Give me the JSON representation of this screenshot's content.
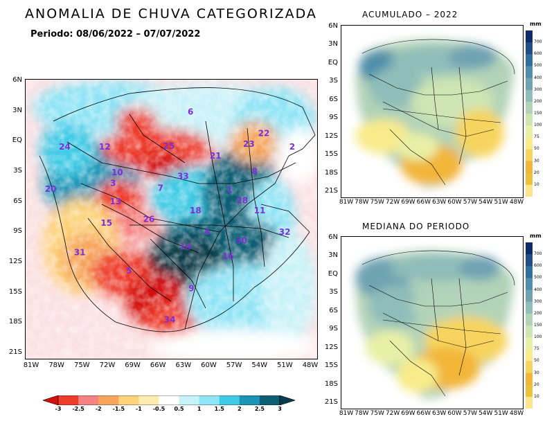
{
  "title": "ANOMALIA DE CHUVA CATEGORIZADA",
  "period": "Periodo: 08/06/2022 – 07/07/2022",
  "main_map": {
    "lat_ticks": [
      "6N",
      "3N",
      "EQ",
      "3S",
      "6S",
      "9S",
      "12S",
      "15S",
      "18S",
      "21S"
    ],
    "lon_ticks": [
      "81W",
      "78W",
      "75W",
      "72W",
      "69W",
      "66W",
      "63W",
      "60W",
      "57W",
      "54W",
      "51W",
      "48W"
    ],
    "basins": [
      {
        "id": "1",
        "lon": -57.5,
        "lat": -5.0
      },
      {
        "id": "2",
        "lon": -50.0,
        "lat": -0.6
      },
      {
        "id": "3",
        "lon": -71.5,
        "lat": -4.3
      },
      {
        "id": "4",
        "lon": -60.2,
        "lat": -9.3
      },
      {
        "id": "5",
        "lon": -69.6,
        "lat": -13.3
      },
      {
        "id": "6",
        "lon": -62.2,
        "lat": 3.0
      },
      {
        "id": "7",
        "lon": -65.8,
        "lat": -4.8
      },
      {
        "id": "8",
        "lon": -54.5,
        "lat": -3.1
      },
      {
        "id": "9",
        "lon": -62.1,
        "lat": -15.1
      },
      {
        "id": "10",
        "lon": -71.0,
        "lat": -3.2
      },
      {
        "id": "11",
        "lon": -53.9,
        "lat": -7.1
      },
      {
        "id": "12",
        "lon": -72.5,
        "lat": -0.6
      },
      {
        "id": "13",
        "lon": -71.2,
        "lat": -6.2
      },
      {
        "id": "14",
        "lon": -62.8,
        "lat": -10.8
      },
      {
        "id": "15",
        "lon": -72.3,
        "lat": -8.4
      },
      {
        "id": "16",
        "lon": -57.7,
        "lat": -11.8
      },
      {
        "id": "18",
        "lon": -61.6,
        "lat": -7.1
      },
      {
        "id": "20",
        "lon": -79.0,
        "lat": -4.9
      },
      {
        "id": "21",
        "lon": -59.2,
        "lat": -1.5
      },
      {
        "id": "22",
        "lon": -53.4,
        "lat": 0.8
      },
      {
        "id": "23",
        "lon": -55.2,
        "lat": -0.3
      },
      {
        "id": "24",
        "lon": -77.3,
        "lat": -0.6
      },
      {
        "id": "25",
        "lon": -64.8,
        "lat": -0.5
      },
      {
        "id": "26",
        "lon": -67.2,
        "lat": -8.0
      },
      {
        "id": "28",
        "lon": -56.0,
        "lat": -6.1
      },
      {
        "id": "30",
        "lon": -56.1,
        "lat": -10.2
      },
      {
        "id": "31",
        "lon": -75.5,
        "lat": -11.4
      },
      {
        "id": "32",
        "lon": -50.9,
        "lat": -9.3
      },
      {
        "id": "33",
        "lon": -63.1,
        "lat": -3.6
      },
      {
        "id": "34",
        "lon": -64.7,
        "lat": -18.3
      }
    ]
  },
  "legend": {
    "labels": [
      "-3",
      "-2.5",
      "-2",
      "-1.5",
      "-1",
      "-0.5",
      "0.5",
      "1",
      "1.5",
      "2",
      "2.5",
      "3"
    ],
    "colors": [
      "#d4100c",
      "#ee3b2a",
      "#f48282",
      "#f6a65b",
      "#fdd27a",
      "#fdebb0",
      "#ffffff",
      "#c7f2f8",
      "#8fe4f5",
      "#3fcbe6",
      "#1c94b5",
      "#0c5f74",
      "#073e4c"
    ]
  },
  "side_maps": [
    {
      "title": "ACUMULADO – 2022"
    },
    {
      "title": "MEDIANA DO PERIODO"
    }
  ],
  "side_lat_ticks": [
    "6N",
    "3N",
    "EQ",
    "3S",
    "6S",
    "9S",
    "12S",
    "15S",
    "18S",
    "21S"
  ],
  "side_lon_ticks": [
    "81W",
    "78W",
    "75W",
    "72W",
    "69W",
    "66W",
    "63W",
    "60W",
    "57W",
    "54W",
    "51W",
    "48W"
  ],
  "colorbar": {
    "unit": "mm",
    "labels": [
      "700",
      "600",
      "500",
      "400",
      "300",
      "200",
      "150",
      "100",
      "75",
      "50",
      "30",
      "20",
      "10"
    ],
    "colors": [
      "#0f2a6b",
      "#1f4b8a",
      "#2f6f9f",
      "#4f8fab",
      "#6fa3b2",
      "#8fbdb9",
      "#b2d3b8",
      "#cde4b3",
      "#e8f0a6",
      "#f8eb8a",
      "#f7d45e",
      "#f2b537",
      "#ecc23a",
      "#fde68a"
    ]
  }
}
